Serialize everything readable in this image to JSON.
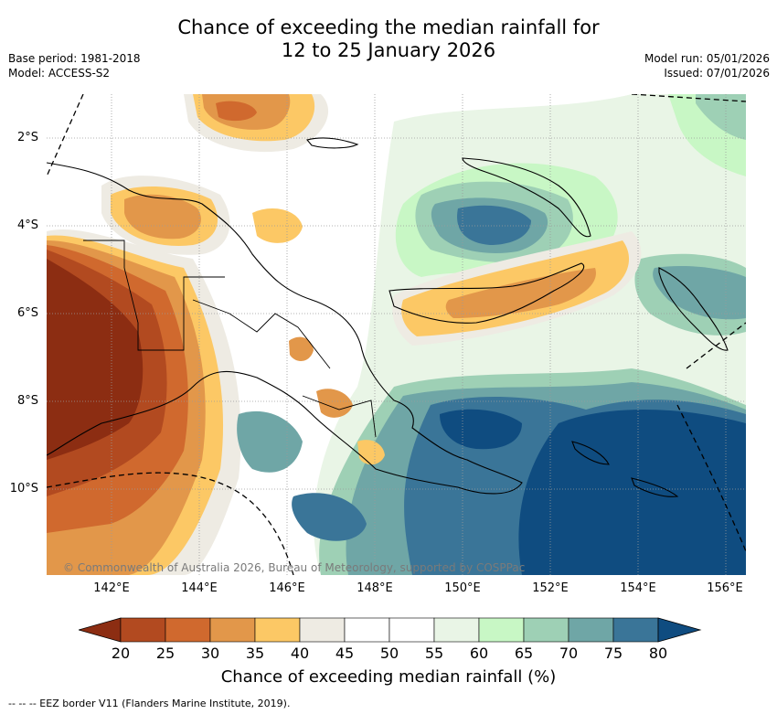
{
  "title_line1": "Chance of exceeding the median rainfall for",
  "title_line2": "12 to 25 January 2026",
  "base_period": "Base period: 1981-2018",
  "model": "Model: ACCESS-S2",
  "model_run": "Model run: 05/01/2026",
  "issued": "Issued: 07/01/2026",
  "lat_labels": [
    "2°S",
    "4°S",
    "6°S",
    "8°S",
    "10°S"
  ],
  "lon_labels": [
    "142°E",
    "144°E",
    "146°E",
    "148°E",
    "150°E",
    "152°E",
    "154°E",
    "156°E"
  ],
  "copyright": "© Commonwealth of Australia 2026, Bureau of Meteorology, supported by COSPPac",
  "colorbar": {
    "ticks": [
      "20",
      "25",
      "30",
      "35",
      "40",
      "45",
      "50",
      "55",
      "60",
      "65",
      "70",
      "75",
      "80"
    ],
    "label": "Chance of exceeding median rainfall (%)",
    "colors": [
      "#8c2d12",
      "#b24a20",
      "#d0692e",
      "#e2974a",
      "#fcc865",
      "#eeebe3",
      "#ffffff",
      "#ffffff",
      "#e9f5e6",
      "#c8f7c5",
      "#9ed0b5",
      "#6fa6a6",
      "#3a7598",
      "#0f4c80"
    ]
  },
  "footnote": "--  --  -- EEZ border V11 (Flanders Marine Institute, 2019).",
  "map_colors": {
    "dark_brown": "#8c2d12",
    "brown": "#b24a20",
    "orange": "#d0692e",
    "light_orange": "#e2974a",
    "yellow": "#fcc865",
    "grey": "#eeebe3",
    "pale_green": "#e9f5e6",
    "light_green": "#c8f7c5",
    "green": "#9ed0b5",
    "teal": "#6fa6a6",
    "blue": "#3a7598",
    "dark_blue": "#0f4c80"
  }
}
